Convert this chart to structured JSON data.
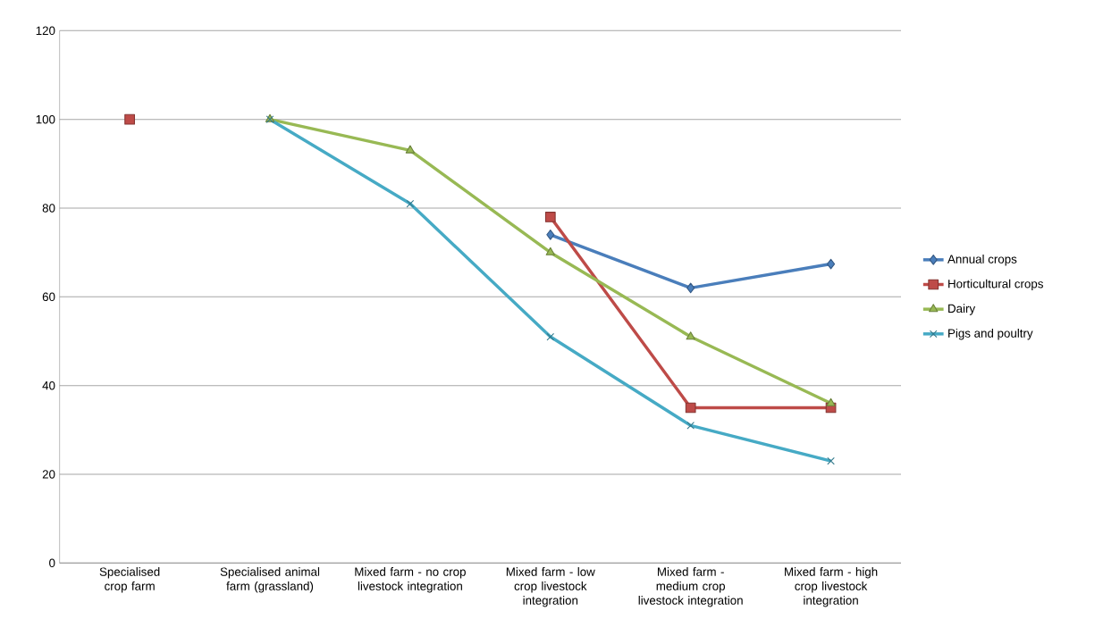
{
  "chart_data": {
    "type": "line",
    "categories": [
      "Specialised crop farm",
      "Specialised animal farm (grassland)",
      "Mixed farm - no crop livestock integration",
      "Mixed farm - low crop livestock integration",
      "Mixed farm - medium crop livestock integration",
      "Mixed farm - high crop livestock integration"
    ],
    "series": [
      {
        "name": "Annual crops",
        "color": "#4a7ebb",
        "marker": "diamond",
        "values": [
          null,
          null,
          null,
          74,
          62,
          67.4
        ]
      },
      {
        "name": "Horticultural crops",
        "color": "#be4b48",
        "marker": "square",
        "values": [
          100,
          null,
          null,
          78,
          35,
          35
        ]
      },
      {
        "name": "Dairy",
        "color": "#98b954",
        "marker": "triangle",
        "values": [
          null,
          100,
          93,
          70,
          51,
          36
        ]
      },
      {
        "name": "Pigs and poultry",
        "color": "#46aac5",
        "marker": "cross",
        "values": [
          null,
          100,
          81,
          51,
          31,
          23
        ]
      }
    ],
    "ylim": [
      0,
      120
    ],
    "yticks": [
      0,
      20,
      40,
      60,
      80,
      100,
      120
    ],
    "grid": "y",
    "legend": "right",
    "line_style": "solid"
  }
}
